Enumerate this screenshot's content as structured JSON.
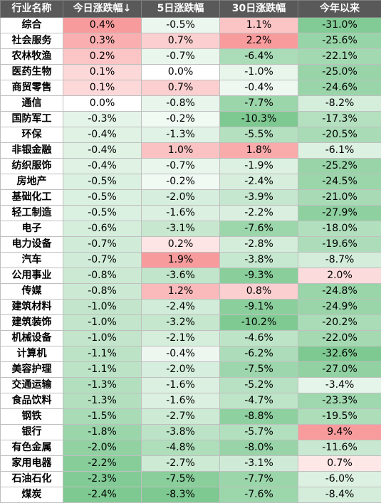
{
  "chart_data": {
    "type": "table",
    "columns": [
      "行业名称",
      "今日涨跌幅↓",
      "5日涨跌幅",
      "30日涨跌幅",
      "今年以来"
    ],
    "rows": [
      {
        "name": "综合",
        "values": [
          "0.4%",
          "-0.5%",
          "1.1%",
          "-31.0%"
        ]
      },
      {
        "name": "社会服务",
        "values": [
          "0.3%",
          "0.7%",
          "2.2%",
          "-25.6%"
        ]
      },
      {
        "name": "农林牧渔",
        "values": [
          "0.2%",
          "-0.7%",
          "-6.4%",
          "-22.1%"
        ]
      },
      {
        "name": "医药生物",
        "values": [
          "0.1%",
          "0.0%",
          "-1.0%",
          "-25.0%"
        ]
      },
      {
        "name": "商贸零售",
        "values": [
          "0.1%",
          "0.7%",
          "-0.4%",
          "-24.6%"
        ]
      },
      {
        "name": "通信",
        "values": [
          "0.0%",
          "-0.8%",
          "-7.7%",
          "-8.2%"
        ]
      },
      {
        "name": "国防军工",
        "values": [
          "-0.3%",
          "-0.2%",
          "-10.3%",
          "-17.3%"
        ]
      },
      {
        "name": "环保",
        "values": [
          "-0.4%",
          "-1.3%",
          "-5.5%",
          "-20.5%"
        ]
      },
      {
        "name": "非银金融",
        "values": [
          "-0.4%",
          "1.0%",
          "1.8%",
          "-6.1%"
        ]
      },
      {
        "name": "纺织服饰",
        "values": [
          "-0.4%",
          "-0.7%",
          "-1.9%",
          "-25.2%"
        ]
      },
      {
        "name": "房地产",
        "values": [
          "-0.5%",
          "-0.2%",
          "-2.4%",
          "-24.5%"
        ]
      },
      {
        "name": "基础化工",
        "values": [
          "-0.5%",
          "-2.0%",
          "-3.9%",
          "-21.0%"
        ]
      },
      {
        "name": "轻工制造",
        "values": [
          "-0.5%",
          "-1.6%",
          "-2.2%",
          "-27.9%"
        ]
      },
      {
        "name": "电子",
        "values": [
          "-0.6%",
          "-3.1%",
          "-7.6%",
          "-18.0%"
        ]
      },
      {
        "name": "电力设备",
        "values": [
          "-0.7%",
          "0.2%",
          "-2.8%",
          "-19.6%"
        ]
      },
      {
        "name": "汽车",
        "values": [
          "-0.7%",
          "1.9%",
          "-3.8%",
          "-8.7%"
        ]
      },
      {
        "name": "公用事业",
        "values": [
          "-0.8%",
          "-3.6%",
          "-9.3%",
          "2.0%"
        ]
      },
      {
        "name": "传媒",
        "values": [
          "-0.8%",
          "1.2%",
          "0.8%",
          "-24.8%"
        ]
      },
      {
        "name": "建筑材料",
        "values": [
          "-1.0%",
          "-2.4%",
          "-9.1%",
          "-24.9%"
        ]
      },
      {
        "name": "建筑装饰",
        "values": [
          "-1.0%",
          "-3.2%",
          "-10.2%",
          "-20.2%"
        ]
      },
      {
        "name": "机械设备",
        "values": [
          "-1.0%",
          "-2.1%",
          "-4.6%",
          "-22.0%"
        ]
      },
      {
        "name": "计算机",
        "values": [
          "-1.1%",
          "-0.4%",
          "-6.2%",
          "-32.6%"
        ]
      },
      {
        "name": "美容护理",
        "values": [
          "-1.1%",
          "-2.0%",
          "-7.5%",
          "-27.0%"
        ]
      },
      {
        "name": "交通运输",
        "values": [
          "-1.3%",
          "-1.6%",
          "-5.2%",
          "-3.4%"
        ]
      },
      {
        "name": "食品饮料",
        "values": [
          "-1.3%",
          "-1.6%",
          "-4.7%",
          "-23.3%"
        ]
      },
      {
        "name": "钢铁",
        "values": [
          "-1.5%",
          "-2.7%",
          "-8.8%",
          "-19.5%"
        ]
      },
      {
        "name": "银行",
        "values": [
          "-1.8%",
          "-3.8%",
          "-5.7%",
          "9.4%"
        ]
      },
      {
        "name": "有色金属",
        "values": [
          "-2.0%",
          "-4.8%",
          "-8.0%",
          "-11.6%"
        ]
      },
      {
        "name": "家用电器",
        "values": [
          "-2.2%",
          "-2.7%",
          "-3.1%",
          "0.7%"
        ]
      },
      {
        "name": "石油石化",
        "values": [
          "-2.3%",
          "-7.5%",
          "-7.7%",
          "-6.0%"
        ]
      },
      {
        "name": "煤炭",
        "values": [
          "-2.4%",
          "-8.3%",
          "-7.6%",
          "-8.4%"
        ]
      }
    ],
    "colors": {
      "header_bg": "#595959",
      "header_text": "#ffffff",
      "positive": "#f4696b",
      "negative": "#63be7b",
      "neutral": "#ffffff"
    }
  }
}
